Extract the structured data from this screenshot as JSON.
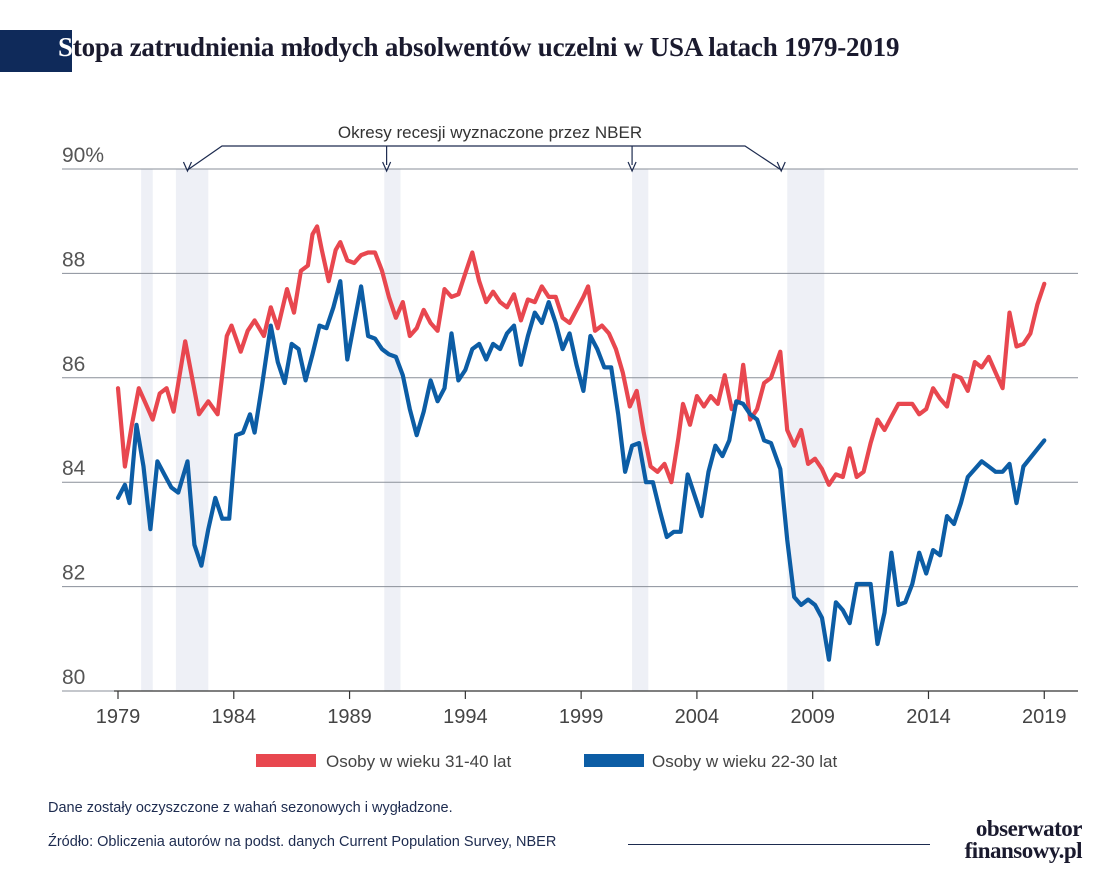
{
  "header": {
    "title_first": "S",
    "title_rest": "topa zatrudnienia młodych absolwentów uczelni w USA latach 1979-2019"
  },
  "footer": {
    "note": "Dane zostały oczyszczone z wahań sezonowych i wygładzone.",
    "source": "Źródło: Obliczenia autorów na podst. danych Current Population Survey, NBER",
    "brand_line1": "obserwator",
    "brand_line2": "finansowy.pl"
  },
  "colors": {
    "series_31_40": "#e8474f",
    "series_22_30": "#0c5da5",
    "recession_band": "#eef0f6",
    "grid": "#8a8f99",
    "axis_text": "#555555"
  },
  "chart_data": {
    "type": "line",
    "title": "Stopa zatrudnienia młodych absolwentów uczelni w USA latach 1979-2019",
    "annotation": "Okresy recesji wyznaczone przez NBER",
    "ylim": [
      80,
      90
    ],
    "y_ticks": [
      80,
      82,
      84,
      86,
      88,
      90
    ],
    "y_tick_labels": [
      "80",
      "82",
      "84",
      "86",
      "88",
      "90%"
    ],
    "xlim": [
      1979.0,
      2020.5
    ],
    "x_ticks": [
      1979,
      1984,
      1989,
      1994,
      1999,
      2004,
      2009,
      2014,
      2019
    ],
    "x_tick_labels": [
      "1979",
      "1984",
      "1989",
      "1994",
      "1999",
      "2004",
      "2009",
      "2014",
      "2019"
    ],
    "recessions": [
      [
        1980.0,
        1980.5
      ],
      [
        1981.5,
        1982.9
      ],
      [
        1990.5,
        1991.2
      ],
      [
        2001.2,
        2001.9
      ],
      [
        2007.9,
        2009.5
      ]
    ],
    "legend": {
      "placement": "bottom",
      "entries": [
        "Osoby w wieku 31-40 lat",
        "Osoby w wieku 22-30 lat"
      ]
    },
    "series": [
      {
        "name": "Osoby w wieku 31-40 lat",
        "color": "#e8474f",
        "points": [
          [
            1979.0,
            85.8
          ],
          [
            1979.3,
            84.3
          ],
          [
            1979.6,
            85.1
          ],
          [
            1979.9,
            85.8
          ],
          [
            1980.2,
            85.5
          ],
          [
            1980.5,
            85.2
          ],
          [
            1980.8,
            85.7
          ],
          [
            1981.1,
            85.8
          ],
          [
            1981.4,
            85.35
          ],
          [
            1981.9,
            86.7
          ],
          [
            1982.2,
            86.0
          ],
          [
            1982.5,
            85.3
          ],
          [
            1982.9,
            85.55
          ],
          [
            1983.3,
            85.3
          ],
          [
            1983.7,
            86.8
          ],
          [
            1983.9,
            87.0
          ],
          [
            1984.3,
            86.5
          ],
          [
            1984.6,
            86.9
          ],
          [
            1984.9,
            87.1
          ],
          [
            1985.3,
            86.8
          ],
          [
            1985.6,
            87.35
          ],
          [
            1985.9,
            86.95
          ],
          [
            1986.3,
            87.7
          ],
          [
            1986.6,
            87.25
          ],
          [
            1986.9,
            88.05
          ],
          [
            1987.2,
            88.15
          ],
          [
            1987.4,
            88.75
          ],
          [
            1987.6,
            88.9
          ],
          [
            1987.8,
            88.45
          ],
          [
            1988.1,
            87.85
          ],
          [
            1988.4,
            88.45
          ],
          [
            1988.6,
            88.6
          ],
          [
            1988.9,
            88.25
          ],
          [
            1989.2,
            88.2
          ],
          [
            1989.5,
            88.35
          ],
          [
            1989.8,
            88.4
          ],
          [
            1990.1,
            88.4
          ],
          [
            1990.4,
            88.05
          ],
          [
            1990.7,
            87.55
          ],
          [
            1991.0,
            87.15
          ],
          [
            1991.3,
            87.45
          ],
          [
            1991.6,
            86.8
          ],
          [
            1991.9,
            86.95
          ],
          [
            1992.2,
            87.3
          ],
          [
            1992.5,
            87.05
          ],
          [
            1992.8,
            86.9
          ],
          [
            1993.1,
            87.7
          ],
          [
            1993.4,
            87.55
          ],
          [
            1993.7,
            87.6
          ],
          [
            1994.0,
            88.0
          ],
          [
            1994.3,
            88.4
          ],
          [
            1994.6,
            87.85
          ],
          [
            1994.9,
            87.45
          ],
          [
            1995.2,
            87.65
          ],
          [
            1995.5,
            87.45
          ],
          [
            1995.8,
            87.35
          ],
          [
            1996.1,
            87.6
          ],
          [
            1996.4,
            87.1
          ],
          [
            1996.7,
            87.5
          ],
          [
            1997.0,
            87.45
          ],
          [
            1997.3,
            87.75
          ],
          [
            1997.6,
            87.55
          ],
          [
            1997.9,
            87.55
          ],
          [
            1998.2,
            87.15
          ],
          [
            1998.5,
            87.05
          ],
          [
            1998.8,
            87.3
          ],
          [
            1999.1,
            87.55
          ],
          [
            1999.3,
            87.75
          ],
          [
            1999.6,
            86.9
          ],
          [
            1999.9,
            87.0
          ],
          [
            2000.2,
            86.85
          ],
          [
            2000.5,
            86.55
          ],
          [
            2000.8,
            86.1
          ],
          [
            2001.1,
            85.45
          ],
          [
            2001.4,
            85.75
          ],
          [
            2001.7,
            84.95
          ],
          [
            2002.0,
            84.3
          ],
          [
            2002.3,
            84.2
          ],
          [
            2002.6,
            84.35
          ],
          [
            2002.9,
            84.0
          ],
          [
            2003.2,
            84.85
          ],
          [
            2003.4,
            85.5
          ],
          [
            2003.7,
            85.1
          ],
          [
            2004.0,
            85.65
          ],
          [
            2004.3,
            85.45
          ],
          [
            2004.6,
            85.65
          ],
          [
            2004.9,
            85.5
          ],
          [
            2005.2,
            86.05
          ],
          [
            2005.5,
            85.4
          ],
          [
            2005.8,
            85.55
          ],
          [
            2006.0,
            86.25
          ],
          [
            2006.3,
            85.2
          ],
          [
            2006.6,
            85.4
          ],
          [
            2006.9,
            85.9
          ],
          [
            2007.2,
            86.0
          ],
          [
            2007.6,
            86.5
          ],
          [
            2007.9,
            85.0
          ],
          [
            2008.2,
            84.7
          ],
          [
            2008.5,
            85.0
          ],
          [
            2008.8,
            84.35
          ],
          [
            2009.1,
            84.45
          ],
          [
            2009.4,
            84.25
          ],
          [
            2009.7,
            83.95
          ],
          [
            2010.0,
            84.15
          ],
          [
            2010.3,
            84.1
          ],
          [
            2010.6,
            84.65
          ],
          [
            2010.9,
            84.1
          ],
          [
            2011.2,
            84.2
          ],
          [
            2011.5,
            84.75
          ],
          [
            2011.8,
            85.2
          ],
          [
            2012.1,
            85.0
          ],
          [
            2012.4,
            85.25
          ],
          [
            2012.7,
            85.5
          ],
          [
            2013.0,
            85.5
          ],
          [
            2013.3,
            85.5
          ],
          [
            2013.6,
            85.3
          ],
          [
            2013.9,
            85.4
          ],
          [
            2014.2,
            85.8
          ],
          [
            2014.5,
            85.6
          ],
          [
            2014.8,
            85.45
          ],
          [
            2015.1,
            86.05
          ],
          [
            2015.4,
            86.0
          ],
          [
            2015.7,
            85.75
          ],
          [
            2016.0,
            86.3
          ],
          [
            2016.3,
            86.2
          ],
          [
            2016.6,
            86.4
          ],
          [
            2016.9,
            86.1
          ],
          [
            2017.2,
            85.8
          ],
          [
            2017.5,
            87.25
          ],
          [
            2017.8,
            86.6
          ],
          [
            2018.1,
            86.65
          ],
          [
            2018.4,
            86.85
          ],
          [
            2018.7,
            87.4
          ],
          [
            2019.0,
            87.8
          ]
        ]
      },
      {
        "name": "Osoby w wieku 22-30 lat",
        "color": "#0c5da5",
        "points": [
          [
            1979.0,
            83.7
          ],
          [
            1979.3,
            83.95
          ],
          [
            1979.5,
            83.6
          ],
          [
            1979.8,
            85.1
          ],
          [
            1980.1,
            84.3
          ],
          [
            1980.4,
            83.1
          ],
          [
            1980.7,
            84.4
          ],
          [
            1981.0,
            84.15
          ],
          [
            1981.3,
            83.9
          ],
          [
            1981.6,
            83.8
          ],
          [
            1982.0,
            84.4
          ],
          [
            1982.3,
            82.8
          ],
          [
            1982.6,
            82.4
          ],
          [
            1982.9,
            83.1
          ],
          [
            1983.2,
            83.7
          ],
          [
            1983.5,
            83.3
          ],
          [
            1983.8,
            83.3
          ],
          [
            1984.1,
            84.9
          ],
          [
            1984.4,
            84.95
          ],
          [
            1984.7,
            85.3
          ],
          [
            1984.9,
            84.95
          ],
          [
            1985.2,
            85.8
          ],
          [
            1985.6,
            87.0
          ],
          [
            1985.9,
            86.3
          ],
          [
            1986.2,
            85.9
          ],
          [
            1986.5,
            86.65
          ],
          [
            1986.8,
            86.55
          ],
          [
            1987.1,
            85.95
          ],
          [
            1987.4,
            86.45
          ],
          [
            1987.7,
            87.0
          ],
          [
            1988.0,
            86.95
          ],
          [
            1988.3,
            87.35
          ],
          [
            1988.6,
            87.85
          ],
          [
            1988.9,
            86.35
          ],
          [
            1989.2,
            87.05
          ],
          [
            1989.5,
            87.75
          ],
          [
            1989.8,
            86.8
          ],
          [
            1990.1,
            86.75
          ],
          [
            1990.4,
            86.55
          ],
          [
            1990.7,
            86.45
          ],
          [
            1991.0,
            86.4
          ],
          [
            1991.3,
            86.05
          ],
          [
            1991.6,
            85.4
          ],
          [
            1991.9,
            84.9
          ],
          [
            1992.2,
            85.35
          ],
          [
            1992.5,
            85.95
          ],
          [
            1992.8,
            85.55
          ],
          [
            1993.1,
            85.8
          ],
          [
            1993.4,
            86.85
          ],
          [
            1993.7,
            85.95
          ],
          [
            1994.0,
            86.15
          ],
          [
            1994.3,
            86.55
          ],
          [
            1994.6,
            86.65
          ],
          [
            1994.9,
            86.35
          ],
          [
            1995.2,
            86.65
          ],
          [
            1995.5,
            86.55
          ],
          [
            1995.8,
            86.85
          ],
          [
            1996.1,
            87.0
          ],
          [
            1996.4,
            86.25
          ],
          [
            1996.7,
            86.8
          ],
          [
            1997.0,
            87.25
          ],
          [
            1997.3,
            87.05
          ],
          [
            1997.6,
            87.45
          ],
          [
            1997.9,
            87.05
          ],
          [
            1998.2,
            86.55
          ],
          [
            1998.5,
            86.85
          ],
          [
            1998.8,
            86.25
          ],
          [
            1999.1,
            85.75
          ],
          [
            1999.4,
            86.8
          ],
          [
            1999.7,
            86.55
          ],
          [
            2000.0,
            86.2
          ],
          [
            2000.3,
            86.2
          ],
          [
            2000.6,
            85.3
          ],
          [
            2000.9,
            84.2
          ],
          [
            2001.2,
            84.7
          ],
          [
            2001.5,
            84.75
          ],
          [
            2001.8,
            84.0
          ],
          [
            2002.1,
            84.0
          ],
          [
            2002.4,
            83.45
          ],
          [
            2002.7,
            82.95
          ],
          [
            2003.0,
            83.05
          ],
          [
            2003.3,
            83.05
          ],
          [
            2003.6,
            84.15
          ],
          [
            2003.9,
            83.75
          ],
          [
            2004.2,
            83.35
          ],
          [
            2004.5,
            84.2
          ],
          [
            2004.8,
            84.7
          ],
          [
            2005.1,
            84.5
          ],
          [
            2005.4,
            84.8
          ],
          [
            2005.7,
            85.55
          ],
          [
            2006.0,
            85.5
          ],
          [
            2006.3,
            85.3
          ],
          [
            2006.6,
            85.2
          ],
          [
            2006.9,
            84.8
          ],
          [
            2007.2,
            84.75
          ],
          [
            2007.6,
            84.25
          ],
          [
            2007.9,
            82.9
          ],
          [
            2008.2,
            81.8
          ],
          [
            2008.5,
            81.65
          ],
          [
            2008.8,
            81.75
          ],
          [
            2009.1,
            81.65
          ],
          [
            2009.4,
            81.4
          ],
          [
            2009.7,
            80.6
          ],
          [
            2010.0,
            81.7
          ],
          [
            2010.3,
            81.55
          ],
          [
            2010.6,
            81.3
          ],
          [
            2010.9,
            82.05
          ],
          [
            2011.2,
            82.05
          ],
          [
            2011.5,
            82.05
          ],
          [
            2011.8,
            80.9
          ],
          [
            2012.1,
            81.5
          ],
          [
            2012.4,
            82.65
          ],
          [
            2012.7,
            81.65
          ],
          [
            2013.0,
            81.7
          ],
          [
            2013.3,
            82.05
          ],
          [
            2013.6,
            82.65
          ],
          [
            2013.9,
            82.25
          ],
          [
            2014.2,
            82.7
          ],
          [
            2014.5,
            82.6
          ],
          [
            2014.8,
            83.35
          ],
          [
            2015.1,
            83.2
          ],
          [
            2015.4,
            83.6
          ],
          [
            2015.7,
            84.1
          ],
          [
            2016.0,
            84.25
          ],
          [
            2016.3,
            84.4
          ],
          [
            2016.6,
            84.3
          ],
          [
            2016.9,
            84.2
          ],
          [
            2017.2,
            84.2
          ],
          [
            2017.5,
            84.35
          ],
          [
            2017.8,
            83.6
          ],
          [
            2018.1,
            84.3
          ],
          [
            2019.0,
            84.8
          ]
        ]
      }
    ]
  }
}
